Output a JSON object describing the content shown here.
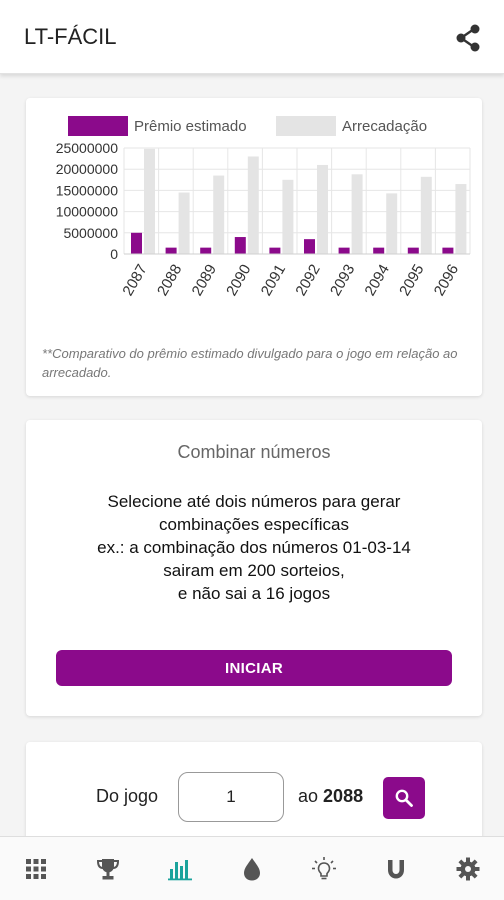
{
  "app": {
    "title": "LT-FÁCIL"
  },
  "icons": {
    "share": "share-icon",
    "search": "search-icon",
    "nav": [
      "grid-icon",
      "trophy-icon",
      "bar-chart-icon",
      "drop-icon",
      "lightbulb-icon",
      "magnet-icon",
      "gear-icon"
    ]
  },
  "colors": {
    "accent": "#8b0a8b",
    "active_nav": "#1ba39c",
    "inactive_nav": "#555555",
    "series_revenue": "#e4e4e4"
  },
  "chart_data": {
    "type": "bar",
    "categories": [
      "2087",
      "2088",
      "2089",
      "2090",
      "2091",
      "2092",
      "2093",
      "2094",
      "2095",
      "2096"
    ],
    "series": [
      {
        "name": "Prêmio estimado",
        "color": "#8b0a8b",
        "values": [
          5000000,
          1500000,
          1500000,
          4000000,
          1500000,
          3500000,
          1500000,
          1500000,
          1500000,
          1500000
        ]
      },
      {
        "name": "Arrecadação",
        "color": "#e4e4e4",
        "values": [
          24800000,
          14500000,
          18500000,
          23000000,
          17500000,
          21000000,
          18800000,
          14300000,
          18200000,
          16500000
        ]
      }
    ],
    "yticks": [
      "25000000",
      "20000000",
      "15000000",
      "10000000",
      "5000000",
      "0"
    ],
    "ylim": [
      0,
      25000000
    ],
    "legend_position": "top",
    "grid": true,
    "footnote": "**Comparativo do prêmio estimado divulgado para o jogo em relação ao arrecadado."
  },
  "combine": {
    "title": "Combinar números",
    "lines": [
      "Selecione até dois números para gerar",
      "combinações específicas",
      "ex.: a combinação dos números 01-03-14",
      "sairam em 200 sorteios,",
      "e não sai a 16 jogos"
    ],
    "start_label": "INICIAR"
  },
  "range": {
    "from_label": "Do jogo",
    "from_value": "1",
    "to_label": "ao",
    "to_value": "2088"
  },
  "nav": {
    "active_index": 2
  }
}
